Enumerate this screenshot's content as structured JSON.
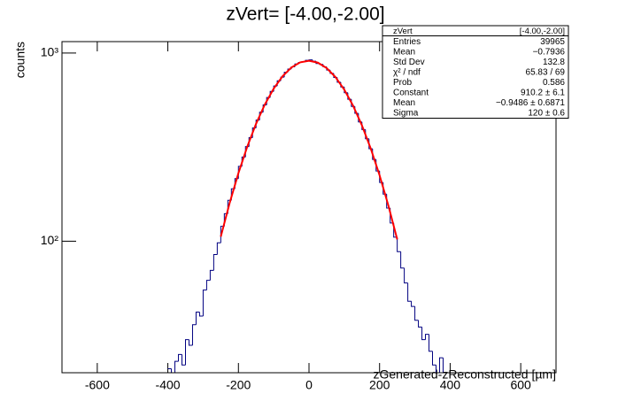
{
  "chart_data": {
    "type": "histogram",
    "title": "zVert= [-4.00,-2.00]",
    "x_label": "zGenerated-zReconstructed [µm]",
    "y_label": "counts",
    "xlim": [
      -700,
      700
    ],
    "ylim": [
      20,
      1150
    ],
    "log_y": true,
    "xticks": [
      -600,
      -400,
      -200,
      0,
      200,
      400,
      600
    ],
    "yticks": [
      {
        "value": 100,
        "label": "10²"
      },
      {
        "value": 1000,
        "label": "10³"
      }
    ],
    "color": "#000080",
    "bins": [
      -400,
      -390,
      -380,
      -370,
      -360,
      -350,
      -340,
      -330,
      -320,
      -310,
      -300,
      -290,
      -280,
      -270,
      -260,
      -250,
      -240,
      -230,
      -220,
      -210,
      -200,
      -190,
      -180,
      -170,
      -160,
      -150,
      -140,
      -130,
      -120,
      -110,
      -100,
      -90,
      -80,
      -70,
      -60,
      -50,
      -40,
      -30,
      -20,
      -10,
      0,
      10,
      20,
      30,
      40,
      50,
      60,
      70,
      80,
      90,
      100,
      110,
      120,
      130,
      140,
      150,
      160,
      170,
      180,
      190,
      200,
      210,
      220,
      230,
      240,
      250,
      260,
      270,
      280,
      290,
      300,
      310,
      320,
      330,
      340,
      350,
      360,
      370,
      380,
      390,
      400
    ],
    "values": [
      21,
      18,
      23,
      25,
      22,
      30,
      28,
      36,
      42,
      40,
      55,
      62,
      70,
      85,
      98,
      120,
      140,
      165,
      190,
      215,
      250,
      280,
      318,
      355,
      400,
      440,
      485,
      530,
      580,
      625,
      668,
      712,
      745,
      790,
      822,
      845,
      875,
      892,
      900,
      915,
      920,
      905,
      880,
      870,
      845,
      812,
      780,
      742,
      700,
      660,
      615,
      568,
      520,
      478,
      430,
      392,
      350,
      310,
      272,
      236,
      205,
      178,
      150,
      125,
      105,
      88,
      72,
      60,
      48,
      45,
      38,
      35,
      30,
      32,
      26,
      22,
      19,
      24,
      0,
      0
    ],
    "fit": {
      "color": "#ff0000",
      "x": [
        -250,
        -225,
        -200,
        -175,
        -150,
        -125,
        -100,
        -75,
        -50,
        -25,
        0,
        25,
        50,
        75,
        100,
        125,
        150,
        175,
        200,
        225,
        250
      ],
      "values": [
        105.7,
        159.3,
        230.0,
        317.9,
        420.9,
        533.5,
        647.4,
        752.4,
        837.3,
        892.1,
        910.2,
        889.2,
        831.7,
        745.0,
        639.0,
        524.7,
        412.6,
        310.7,
        224.0,
        154.6,
        102.2
      ]
    },
    "stats": {
      "name": "zVert",
      "range": "[-4.00,-2.00]",
      "rows": [
        [
          "Entries",
          "39965"
        ],
        [
          "Mean",
          "−0.7936"
        ],
        [
          "Std Dev",
          "132.8"
        ],
        [
          "χ² / ndf",
          "65.83 / 69"
        ],
        [
          "Prob",
          "0.586"
        ],
        [
          "Constant",
          "910.2 ± 6.1"
        ],
        [
          "Mean",
          "−0.9486 ± 0.6871"
        ],
        [
          "Sigma",
          "120 ± 0.6"
        ]
      ]
    }
  }
}
